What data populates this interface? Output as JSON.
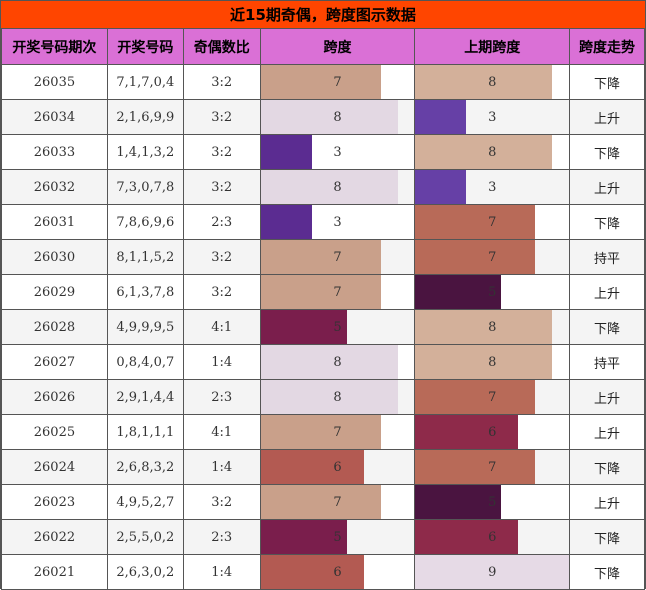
{
  "title": "近15期奇偶，跨度图示数据",
  "headers": [
    "开奖号码期次",
    "开奖号码",
    "奇偶数比",
    "跨度",
    "上期跨度",
    "跨度走势"
  ],
  "colors": {
    "3": "#5b2c91",
    "5": "#7a1e4c",
    "6": "#b35a52",
    "7": "#c9a08a",
    "8": "#e3d8e3"
  },
  "colors_last": {
    "3": "#6640a6",
    "5": "#4a1440",
    "6": "#8e2a4a",
    "7": "#b86a58",
    "8": "#d3b09a",
    "9": "#e6dae6"
  },
  "chart_data": {
    "type": "table",
    "columns": [
      "开奖号码期次",
      "开奖号码",
      "奇偶数比",
      "跨度",
      "上期跨度",
      "跨度走势"
    ],
    "bar_max": 9,
    "rows": [
      {
        "period": "26035",
        "numbers": "7,1,7,0,4",
        "ratio": "3:2",
        "span": 7,
        "last_span": 8,
        "trend": "下降"
      },
      {
        "period": "26034",
        "numbers": "2,1,6,9,9",
        "ratio": "3:2",
        "span": 8,
        "last_span": 3,
        "trend": "上升"
      },
      {
        "period": "26033",
        "numbers": "1,4,1,3,2",
        "ratio": "3:2",
        "span": 3,
        "last_span": 8,
        "trend": "下降"
      },
      {
        "period": "26032",
        "numbers": "7,3,0,7,8",
        "ratio": "3:2",
        "span": 8,
        "last_span": 3,
        "trend": "上升"
      },
      {
        "period": "26031",
        "numbers": "7,8,6,9,6",
        "ratio": "2:3",
        "span": 3,
        "last_span": 7,
        "trend": "下降"
      },
      {
        "period": "26030",
        "numbers": "8,1,1,5,2",
        "ratio": "3:2",
        "span": 7,
        "last_span": 7,
        "trend": "持平"
      },
      {
        "period": "26029",
        "numbers": "6,1,3,7,8",
        "ratio": "3:2",
        "span": 7,
        "last_span": 5,
        "trend": "上升"
      },
      {
        "period": "26028",
        "numbers": "4,9,9,9,5",
        "ratio": "4:1",
        "span": 5,
        "last_span": 8,
        "trend": "下降"
      },
      {
        "period": "26027",
        "numbers": "0,8,4,0,7",
        "ratio": "1:4",
        "span": 8,
        "last_span": 8,
        "trend": "持平"
      },
      {
        "period": "26026",
        "numbers": "2,9,1,4,4",
        "ratio": "2:3",
        "span": 8,
        "last_span": 7,
        "trend": "上升"
      },
      {
        "period": "26025",
        "numbers": "1,8,1,1,1",
        "ratio": "4:1",
        "span": 7,
        "last_span": 6,
        "trend": "上升"
      },
      {
        "period": "26024",
        "numbers": "2,6,8,3,2",
        "ratio": "1:4",
        "span": 6,
        "last_span": 7,
        "trend": "下降"
      },
      {
        "period": "26023",
        "numbers": "4,9,5,2,7",
        "ratio": "3:2",
        "span": 7,
        "last_span": 5,
        "trend": "上升"
      },
      {
        "period": "26022",
        "numbers": "2,5,5,0,2",
        "ratio": "2:3",
        "span": 5,
        "last_span": 6,
        "trend": "下降"
      },
      {
        "period": "26021",
        "numbers": "2,6,3,0,2",
        "ratio": "1:4",
        "span": 6,
        "last_span": 9,
        "trend": "下降"
      }
    ]
  }
}
